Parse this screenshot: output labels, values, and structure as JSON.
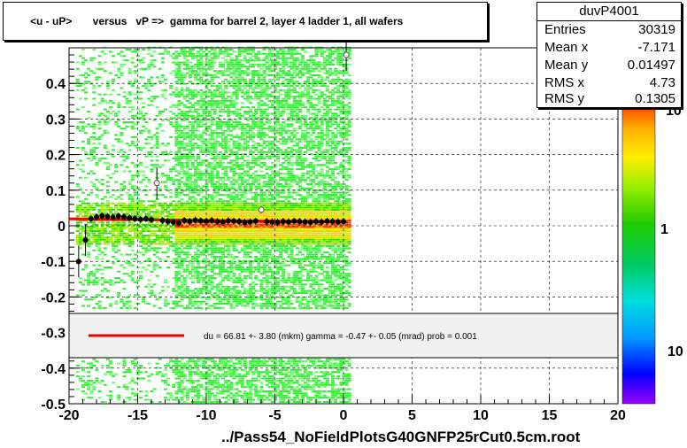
{
  "title": "<u - uP>       versus   vP =>  gamma for barrel 2, layer 4 ladder 1, all wafers",
  "stats": {
    "name": "duvP4001",
    "rows": [
      {
        "label": "Entries",
        "value": "30319"
      },
      {
        "label": "Mean x",
        "value": "-7.171"
      },
      {
        "label": "Mean y",
        "value": "0.01497"
      },
      {
        "label": "RMS x",
        "value": "4.73"
      },
      {
        "label": "RMS y",
        "value": "0.1305"
      }
    ]
  },
  "fit_text": "du =   66.81 +-  3.80 (mkm) gamma =   -0.47 +-  0.05 (mrad) prob = 0.001",
  "footer": "../Pass54_NoFieldPlotsG40GNFP25rCut0.5cm.root",
  "colors": {
    "fit_line": "#ee0000",
    "profile_marker": "#000000",
    "legend_bg": "#f0f0f0"
  },
  "chart_data": {
    "type": "heatmap",
    "title": "<u - uP>       versus   vP =>  gamma for barrel 2, layer 4 ladder 1, all wafers",
    "xlim": [
      -20,
      20
    ],
    "ylim": [
      -0.5,
      0.5
    ],
    "x_ticks": [
      -20,
      -15,
      -10,
      -5,
      0,
      5,
      10,
      15,
      20
    ],
    "y_ticks": [
      -0.5,
      -0.4,
      -0.3,
      -0.2,
      -0.1,
      0,
      0.1,
      0.2,
      0.3,
      0.4
    ],
    "x_tick_labels": [
      "-20",
      "-15",
      "-10",
      "-5",
      "0",
      "5",
      "10",
      "15",
      "20"
    ],
    "y_tick_labels": [
      "-0.5",
      "-0.4",
      "-0.3",
      "-0.2",
      "-0.1",
      "0",
      "0.1",
      "0.2",
      "0.3",
      "0.4"
    ],
    "grid": true,
    "palette_labels": [
      "10",
      "1",
      "10"
    ],
    "occupied_x_range": [
      -19.5,
      0.3
    ],
    "dense_x_range": [
      -12.5,
      0.3
    ],
    "profile": {
      "x": [
        -19.3,
        -18.8,
        -18.4,
        -18.0,
        -17.6,
        -17.2,
        -16.8,
        -16.4,
        -16.0,
        -15.6,
        -15.2,
        -14.8,
        -14.4,
        -14.0,
        -13.6,
        -13.2,
        -12.8,
        -12.4,
        -12.0,
        -11.6,
        -11.2,
        -10.8,
        -10.4,
        -10.0,
        -9.6,
        -9.2,
        -8.8,
        -8.4,
        -8.0,
        -7.6,
        -7.2,
        -6.8,
        -6.4,
        -6.0,
        -5.6,
        -5.2,
        -4.8,
        -4.4,
        -4.0,
        -3.6,
        -3.2,
        -2.8,
        -2.4,
        -2.0,
        -1.6,
        -1.2,
        -0.8,
        -0.4,
        0.0,
        0.2
      ],
      "y": [
        -0.1,
        -0.04,
        0.02,
        0.025,
        0.028,
        0.026,
        0.024,
        0.027,
        0.025,
        0.022,
        0.02,
        0.018,
        0.02,
        0.017,
        0.12,
        0.015,
        0.012,
        0.01,
        0.008,
        0.015,
        0.012,
        0.016,
        0.014,
        0.013,
        0.015,
        0.012,
        0.011,
        0.014,
        0.013,
        0.012,
        0.01,
        0.011,
        0.013,
        0.045,
        0.012,
        0.011,
        0.01,
        0.012,
        0.011,
        0.013,
        0.012,
        0.011,
        0.01,
        0.012,
        0.011,
        0.013,
        0.012,
        0.011,
        0.012,
        0.48
      ]
    },
    "fit_line": {
      "x": [
        -20,
        0.3
      ],
      "y": [
        0.0195,
        0.0102
      ]
    }
  }
}
